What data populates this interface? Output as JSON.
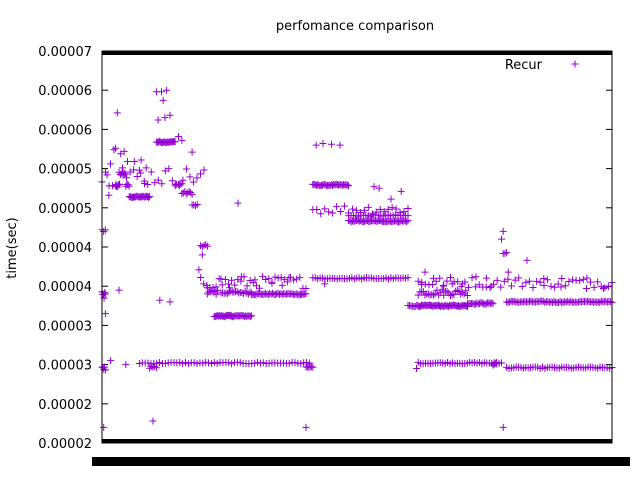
{
  "chart_data": {
    "type": "scatter",
    "title": "perfomance comparison",
    "xlabel": "",
    "ylabel": "time(sec)",
    "yticks": [
      "0.00007",
      "0.00006",
      "0.00006",
      "0.00005",
      "0.00005",
      "0.00004",
      "0.00004",
      "0.00003",
      "0.00003",
      "0.00002",
      "0.00002"
    ],
    "ylim": [
      2e-05,
      7e-05
    ],
    "xlim": [
      0,
      300
    ],
    "grid": false,
    "legend_position": "top-right",
    "color": "#9400d3",
    "series": [
      {
        "name": "Recur",
        "clusters": [
          {
            "x0": 0,
            "x1": 2,
            "y": 4.71e-05,
            "n": 3,
            "jitter": 3e-07
          },
          {
            "x0": 0,
            "x1": 2,
            "y": 3.88e-05,
            "n": 6,
            "jitter": 5e-07
          },
          {
            "x0": 0,
            "x1": 2,
            "y": 2.95e-05,
            "n": 5,
            "jitter": 3e-07
          },
          {
            "x0": 8,
            "x1": 10,
            "y": 5.28e-05,
            "n": 5,
            "jitter": 2e-07
          },
          {
            "x0": 10,
            "x1": 14,
            "y": 5.44e-05,
            "n": 6,
            "jitter": 2e-07
          },
          {
            "x0": 14,
            "x1": 16,
            "y": 5.28e-05,
            "n": 4,
            "jitter": 2e-07
          },
          {
            "x0": 16,
            "x1": 28,
            "y": 5.14e-05,
            "n": 20,
            "jitter": 1e-07
          },
          {
            "x0": 28,
            "x1": 32,
            "y": 2.97e-05,
            "n": 5,
            "jitter": 2e-07
          },
          {
            "x0": 32,
            "x1": 43,
            "y": 5.84e-05,
            "n": 20,
            "jitter": 1e-07
          },
          {
            "x0": 43,
            "x1": 47,
            "y": 5.3e-05,
            "n": 5,
            "jitter": 2e-07
          },
          {
            "x0": 47,
            "x1": 53,
            "y": 5.19e-05,
            "n": 8,
            "jitter": 2e-07
          },
          {
            "x0": 53,
            "x1": 56,
            "y": 5.03e-05,
            "n": 4,
            "jitter": 2e-07
          },
          {
            "x0": 58,
            "x1": 62,
            "y": 4.51e-05,
            "n": 5,
            "jitter": 2e-07
          },
          {
            "x0": 62,
            "x1": 68,
            "y": 3.92e-05,
            "n": 8,
            "jitter": 3e-07
          },
          {
            "x0": 66,
            "x1": 76,
            "y": 3.62e-05,
            "n": 18,
            "jitter": 1e-07
          },
          {
            "x0": 76,
            "x1": 88,
            "y": 3.62e-05,
            "n": 18,
            "jitter": 1e-07
          },
          {
            "x0": 70,
            "x1": 88,
            "y": 3.92e-05,
            "n": 20,
            "jitter": 2e-07
          },
          {
            "x0": 88,
            "x1": 120,
            "y": 3.9e-05,
            "n": 40,
            "jitter": 1e-07
          },
          {
            "x0": 120,
            "x1": 124,
            "y": 2.97e-05,
            "n": 6,
            "jitter": 1e-07
          },
          {
            "x0": 124,
            "x1": 145,
            "y": 5.29e-05,
            "n": 30,
            "jitter": 1e-07
          },
          {
            "x0": 145,
            "x1": 180,
            "y": 4.83e-05,
            "n": 45,
            "jitter": 1e-07
          },
          {
            "x0": 145,
            "x1": 180,
            "y": 4.9e-05,
            "n": 25,
            "jitter": 1e-07
          },
          {
            "x0": 180,
            "x1": 186,
            "y": 3.75e-05,
            "n": 8,
            "jitter": 1e-07
          },
          {
            "x0": 186,
            "x1": 215,
            "y": 3.75e-05,
            "n": 45,
            "jitter": 1e-07
          },
          {
            "x0": 186,
            "x1": 215,
            "y": 3.92e-05,
            "n": 30,
            "jitter": 4e-07
          },
          {
            "x0": 215,
            "x1": 230,
            "y": 3.78e-05,
            "n": 20,
            "jitter": 1e-07
          },
          {
            "x0": 230,
            "x1": 232,
            "y": 3.01e-05,
            "n": 4,
            "jitter": 2e-07
          },
          {
            "x0": 236,
            "x1": 238,
            "y": 4.42e-05,
            "n": 3,
            "jitter": 3e-07
          },
          {
            "x0": 238,
            "x1": 300,
            "y": 3.8e-05,
            "n": 70,
            "jitter": 1e-07
          },
          {
            "x0": 186,
            "x1": 235,
            "y": 3.02e-05,
            "n": 35,
            "jitter": 1e-07
          },
          {
            "x0": 22,
            "x1": 122,
            "y": 3.02e-05,
            "n": 60,
            "jitter": 1e-07
          },
          {
            "x0": 238,
            "x1": 300,
            "y": 2.96e-05,
            "n": 45,
            "jitter": 1e-07
          },
          {
            "x0": 124,
            "x1": 180,
            "y": 4.1e-05,
            "n": 40,
            "jitter": 1e-07
          },
          {
            "x0": 58,
            "x1": 120,
            "y": 4.05e-05,
            "n": 35,
            "jitter": 8e-07
          },
          {
            "x0": 124,
            "x1": 180,
            "y": 4.98e-05,
            "n": 25,
            "jitter": 6e-07
          },
          {
            "x0": 186,
            "x1": 300,
            "y": 4.05e-05,
            "n": 55,
            "jitter": 7e-07
          },
          {
            "x0": 0,
            "x1": 60,
            "y": 5.4e-05,
            "n": 30,
            "jitter": 1.2e-06
          }
        ],
        "outliers": [
          [
            9,
            6.21e-05
          ],
          [
            8,
            5.76e-05
          ],
          [
            7,
            5.74e-05
          ],
          [
            11,
            5.69e-05
          ],
          [
            13,
            5.72e-05
          ],
          [
            12,
            5.51e-05
          ],
          [
            15,
            5.59e-05
          ],
          [
            19,
            5.59e-05
          ],
          [
            23,
            5.61e-05
          ],
          [
            26,
            5.51e-05
          ],
          [
            25,
            5.31e-05
          ],
          [
            22,
            5.48e-05
          ],
          [
            3,
            5.42e-05
          ],
          [
            5,
            5.56e-05
          ],
          [
            4,
            5.16e-05
          ],
          [
            10,
            3.95e-05
          ],
          [
            2,
            3.65e-05
          ],
          [
            1,
            2.2e-05
          ],
          [
            14,
            3e-05
          ],
          [
            30,
            2.28e-05
          ],
          [
            32,
            6.48e-05
          ],
          [
            35,
            6.48e-05
          ],
          [
            38,
            6.5e-05
          ],
          [
            36,
            6.37e-05
          ],
          [
            33,
            6.12e-05
          ],
          [
            40,
            6.18e-05
          ],
          [
            37,
            6.15e-05
          ],
          [
            34,
            3.82e-05
          ],
          [
            40,
            3.8e-05
          ],
          [
            45,
            5.91e-05
          ],
          [
            47,
            5.86e-05
          ],
          [
            53,
            5.71e-05
          ],
          [
            57,
            4.21e-05
          ],
          [
            59,
            4.4e-05
          ],
          [
            62,
            3.98e-05
          ],
          [
            70,
            4.09e-05
          ],
          [
            75,
            3.98e-05
          ],
          [
            80,
            5.06e-05
          ],
          [
            82,
            4.12e-05
          ],
          [
            90,
            4.08e-05
          ],
          [
            100,
            4.05e-05
          ],
          [
            106,
            4.01e-05
          ],
          [
            110,
            4.11e-05
          ],
          [
            117,
            3.89e-05
          ],
          [
            120,
            2.2e-05
          ],
          [
            126,
            5.8e-05
          ],
          [
            130,
            5.82e-05
          ],
          [
            135,
            5.81e-05
          ],
          [
            140,
            5.8e-05
          ],
          [
            131,
            4.03e-05
          ],
          [
            160,
            5.27e-05
          ],
          [
            163,
            5.25e-05
          ],
          [
            170,
            5.11e-05
          ],
          [
            176,
            5.21e-05
          ],
          [
            188,
            4.02e-05
          ],
          [
            190,
            4.18e-05
          ],
          [
            195,
            4.1e-05
          ],
          [
            201,
            4.01e-05
          ],
          [
            206,
            4.03e-05
          ],
          [
            212,
            4.03e-05
          ],
          [
            220,
            4.12e-05
          ],
          [
            226,
            3.99e-05
          ],
          [
            229,
            4e-05
          ],
          [
            235,
            4.6e-05
          ],
          [
            236,
            2.2e-05
          ],
          [
            236,
            4.7e-05
          ],
          [
            239,
            4.18e-05
          ],
          [
            250,
            4.33e-05
          ],
          [
            260,
            4.01e-05
          ],
          [
            270,
            3.99e-05
          ],
          [
            285,
            3.97e-05
          ],
          [
            295,
            3.97e-05
          ],
          [
            185,
            2.95e-05
          ],
          [
            5,
            3.05e-05
          ]
        ]
      }
    ]
  }
}
